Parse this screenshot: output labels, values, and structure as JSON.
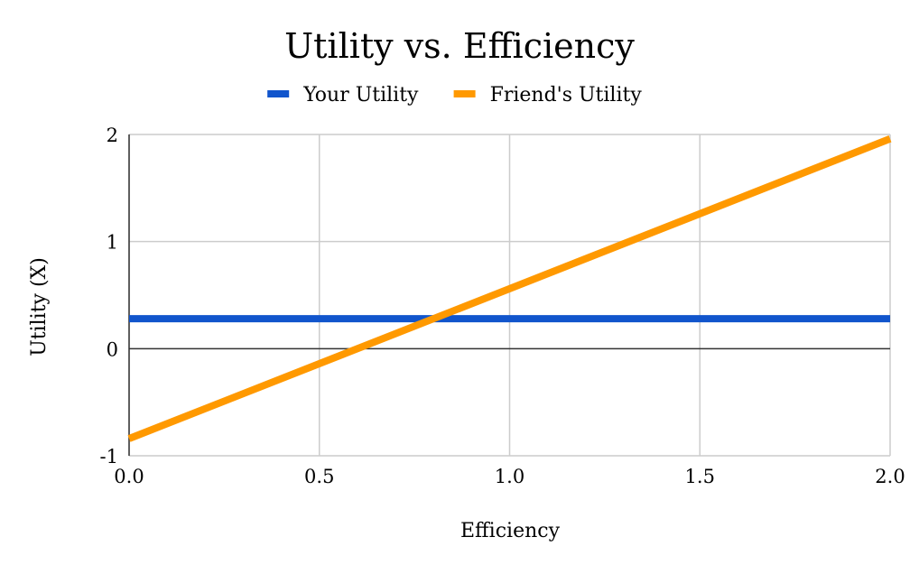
{
  "chart_data": {
    "type": "line",
    "title": "Utility vs. Efficiency",
    "xlabel": "Efficiency",
    "ylabel": "Utility (X)",
    "xlim": [
      0.0,
      2.0
    ],
    "ylim": [
      -1,
      2
    ],
    "x_ticks": [
      "0.0",
      "0.5",
      "1.0",
      "1.5",
      "2.0"
    ],
    "y_ticks": [
      "-1",
      "0",
      "1",
      "2"
    ],
    "grid": true,
    "legend_position": "top",
    "series": [
      {
        "name": "Your Utility",
        "color": "#1155cc",
        "x": [
          0.0,
          2.0
        ],
        "y": [
          0.28,
          0.28
        ]
      },
      {
        "name": "Friend's Utility",
        "color": "#ff9900",
        "x": [
          0.0,
          2.0
        ],
        "y": [
          -0.84,
          1.96
        ]
      }
    ]
  }
}
